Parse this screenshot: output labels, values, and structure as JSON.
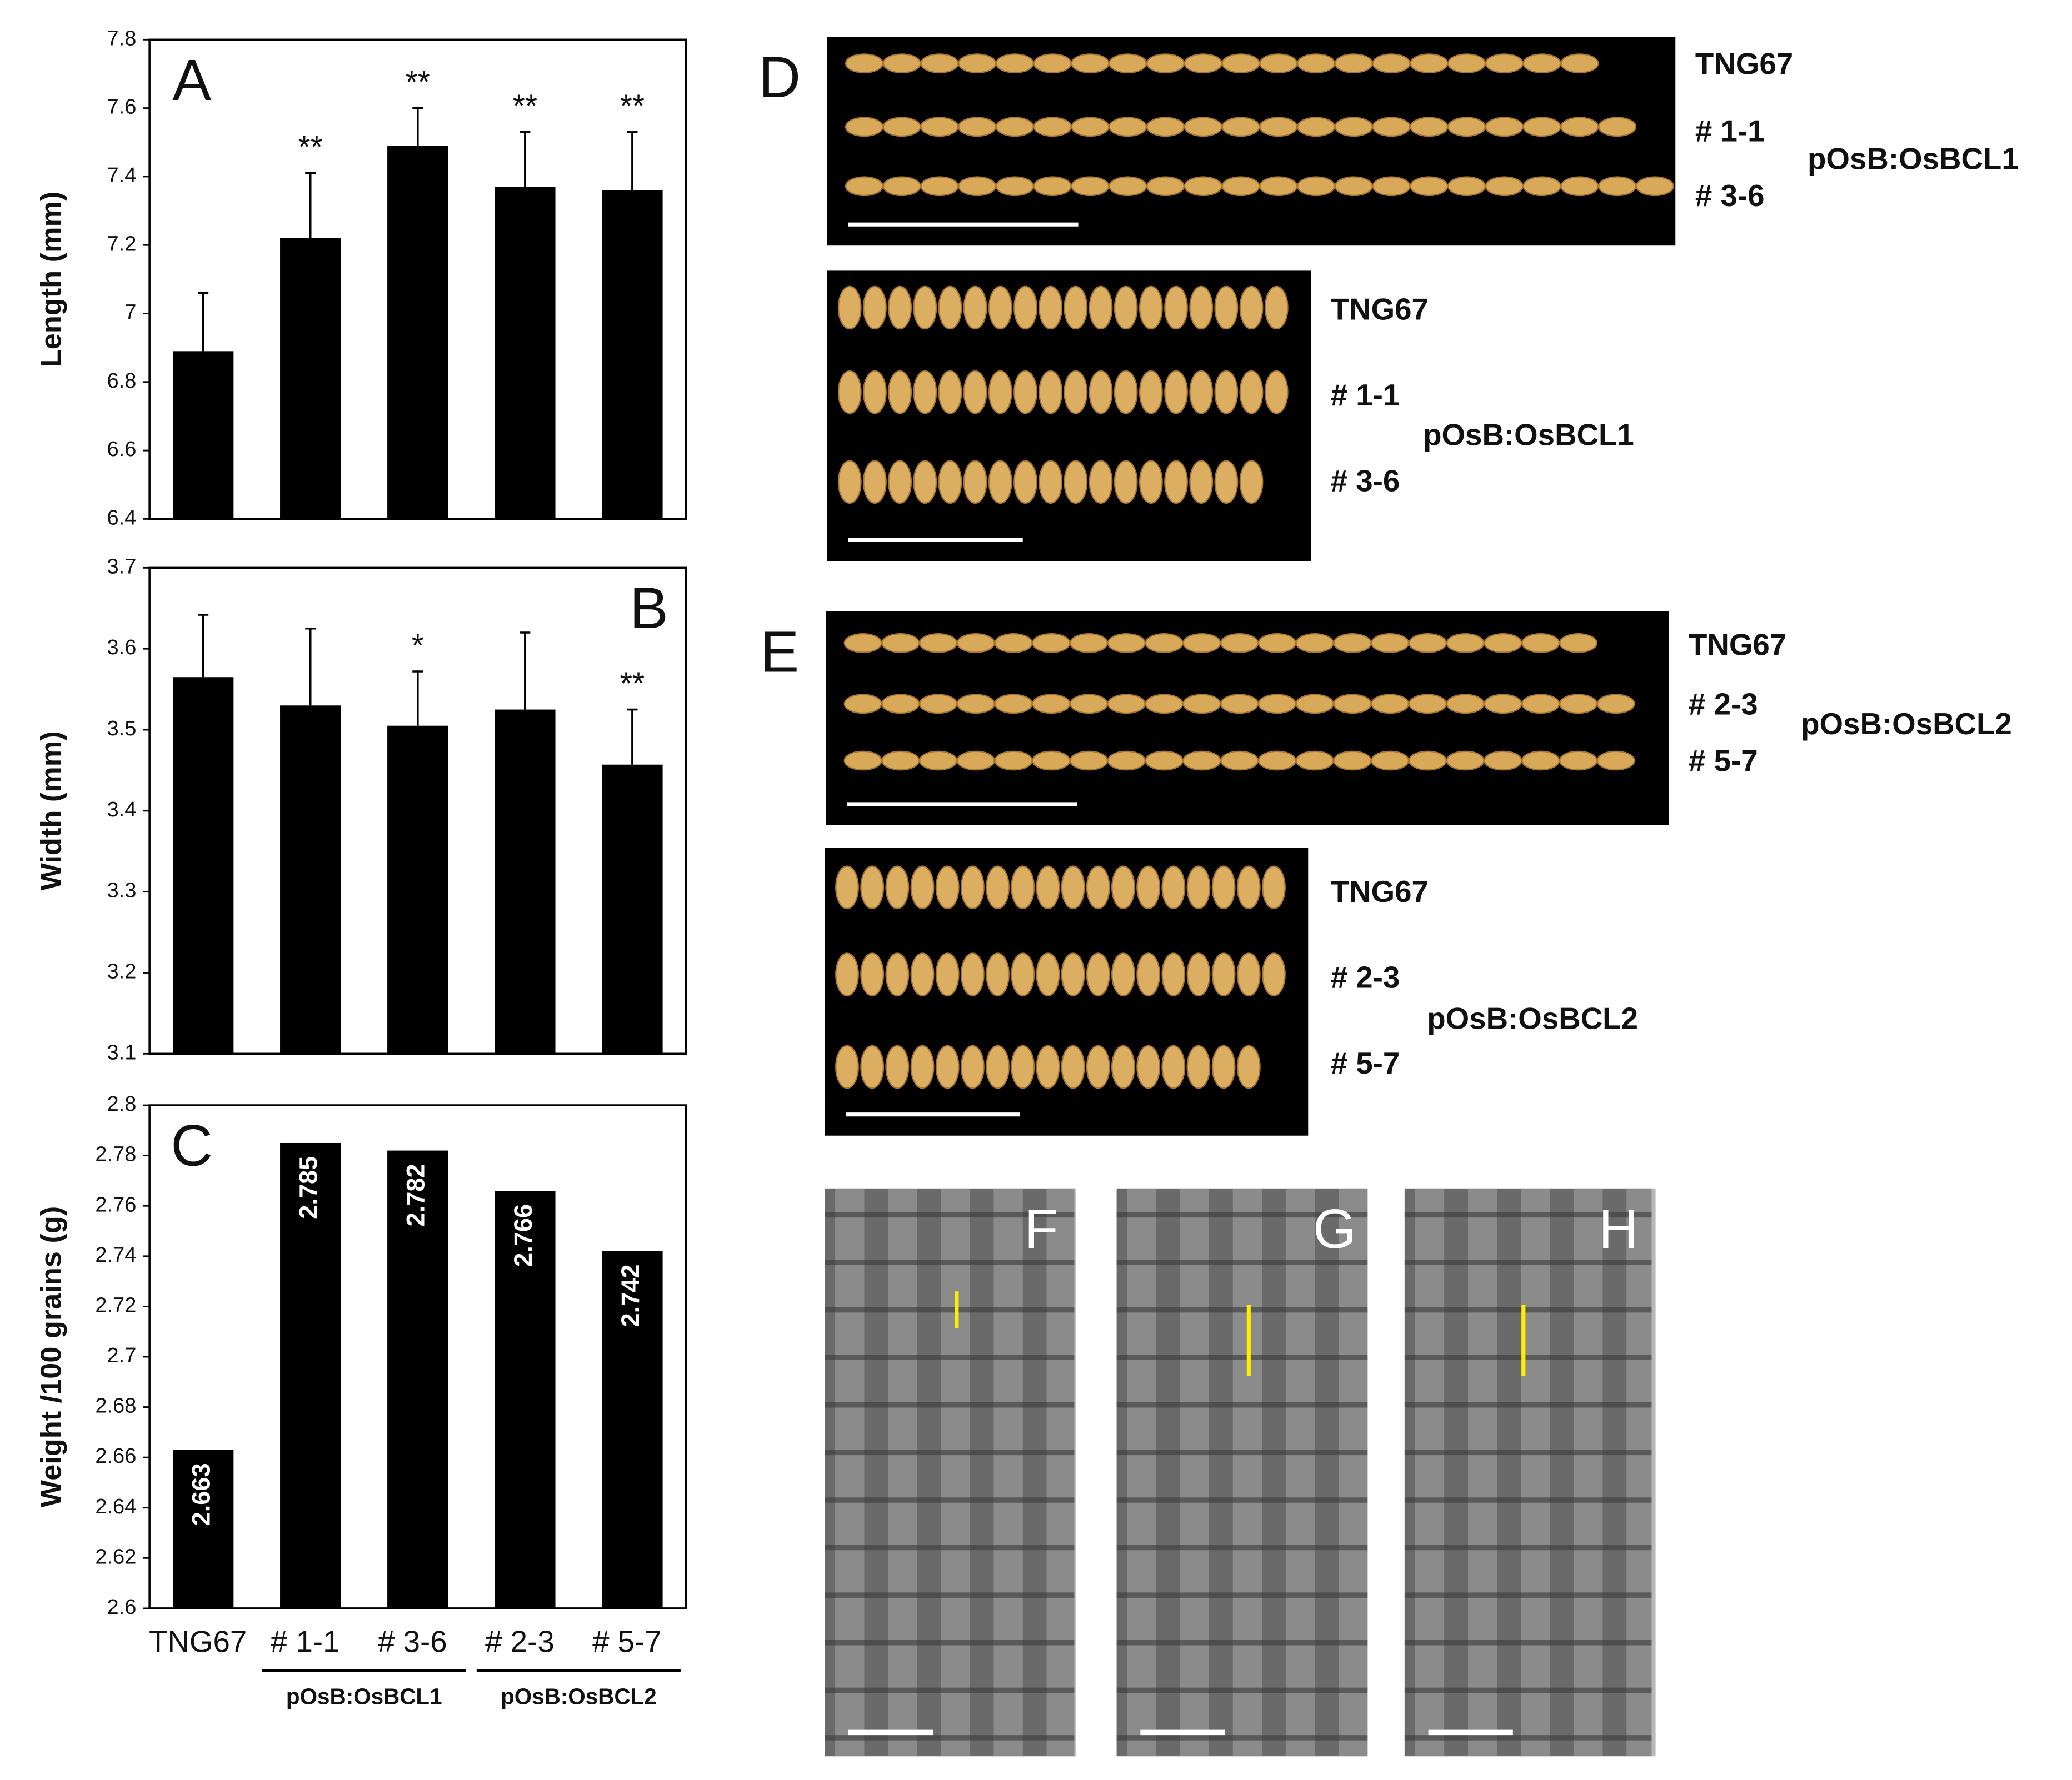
{
  "chart_data": [
    {
      "type": "bar",
      "panel": "A",
      "ylabel": "Length (mm)",
      "color": "#000000",
      "values": [
        6.89,
        7.22,
        7.49,
        7.37,
        7.36
      ],
      "errors": [
        0.17,
        0.19,
        0.11,
        0.16,
        0.17
      ],
      "significance": [
        null,
        "**",
        "**",
        "**",
        "**"
      ],
      "ylim": [
        6.4,
        7.8
      ],
      "yticks": [
        6.4,
        6.6,
        6.8,
        7,
        7.2,
        7.4,
        7.6,
        7.8
      ]
    },
    {
      "type": "bar",
      "panel": "B",
      "ylabel": "Width (mm)",
      "color": "#000000",
      "values": [
        3.565,
        3.53,
        3.505,
        3.525,
        3.457
      ],
      "errors": [
        0.077,
        0.095,
        0.067,
        0.095,
        0.068
      ],
      "significance": [
        null,
        null,
        "*",
        null,
        "**"
      ],
      "ylim": [
        3.1,
        3.7
      ],
      "yticks": [
        3.1,
        3.2,
        3.3,
        3.4,
        3.5,
        3.6,
        3.7
      ]
    },
    {
      "type": "bar",
      "panel": "C",
      "ylabel": "Weight /100 grains (g)",
      "color": "#000000",
      "categories": [
        "TNG67",
        "# 1-1",
        "# 3-6",
        "# 2-3",
        "# 5-7"
      ],
      "values": [
        2.663,
        2.785,
        2.782,
        2.766,
        2.742
      ],
      "groups": [
        {
          "label": "pOsB:OsBCL1",
          "from": 1,
          "to": 2
        },
        {
          "label": "pOsB:OsBCL2",
          "from": 3,
          "to": 4
        }
      ],
      "ylim": [
        2.6,
        2.8
      ],
      "yticks": [
        2.6,
        2.62,
        2.64,
        2.66,
        2.68,
        2.7,
        2.72,
        2.74,
        2.76,
        2.78,
        2.8
      ]
    }
  ],
  "photo_panels": [
    {
      "label": "D",
      "images": [
        {
          "row_labels": [
            "TNG67",
            "# 1-1",
            "# 3-6"
          ],
          "group_label": "pOsB:OsBCL1"
        },
        {
          "row_labels": [
            "TNG67",
            "# 1-1",
            "# 3-6"
          ],
          "group_label": "pOsB:OsBCL1"
        }
      ]
    },
    {
      "label": "E",
      "images": [
        {
          "row_labels": [
            "TNG67",
            "# 2-3",
            "# 5-7"
          ],
          "group_label": "pOsB:OsBCL2"
        },
        {
          "row_labels": [
            "TNG67",
            "# 2-3",
            "# 5-7"
          ],
          "group_label": "pOsB:OsBCL2"
        }
      ]
    }
  ],
  "sem_panels": [
    {
      "label": "F"
    },
    {
      "label": "G"
    },
    {
      "label": "H"
    }
  ]
}
